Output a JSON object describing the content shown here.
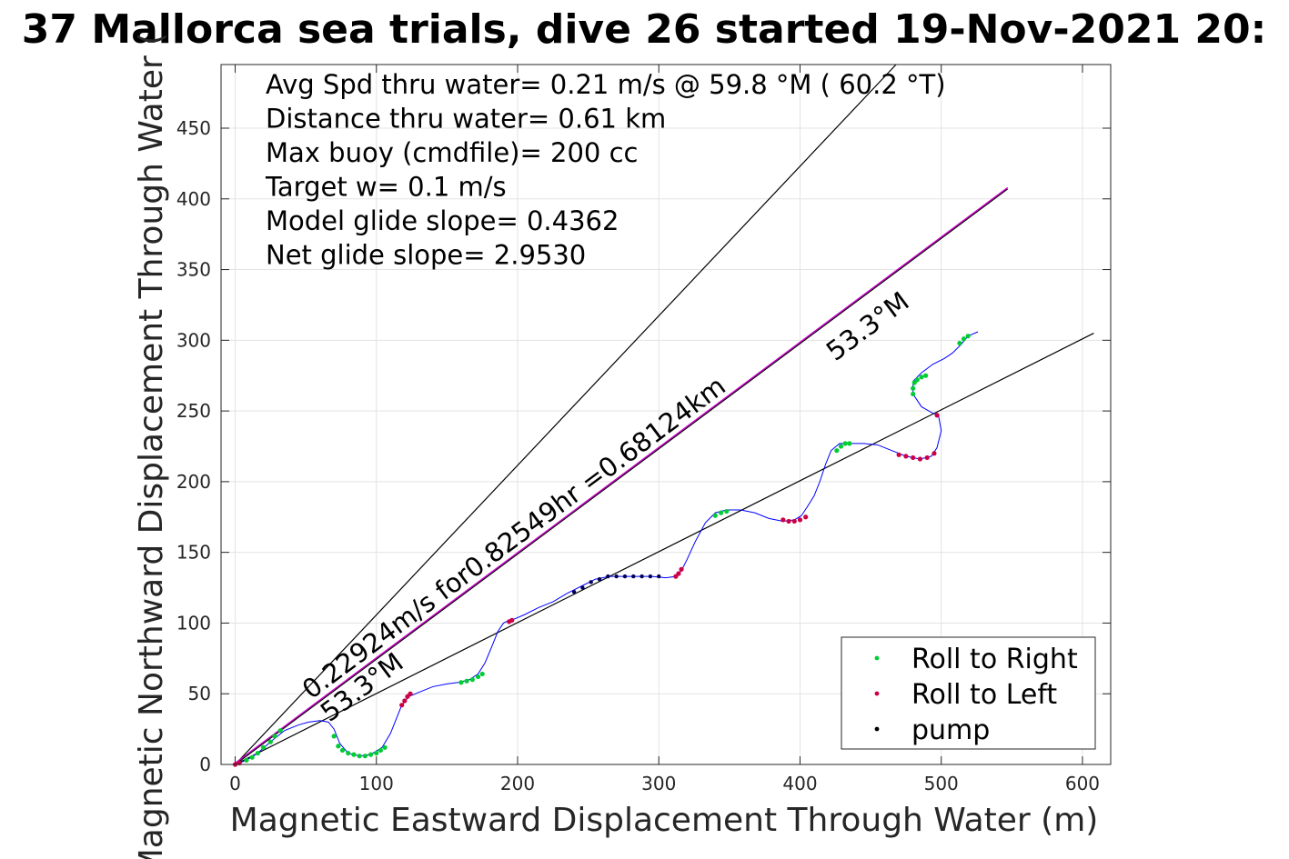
{
  "chart_data": {
    "type": "scatter",
    "title": "37 Mallorca sea trials, dive 26 started 19-Nov-2021 20:",
    "xlabel": "Magnetic Eastward Displacement Through Water (m)",
    "ylabel": "Magnetic Northward Displacement Through Water (",
    "xlim": [
      -10,
      620
    ],
    "ylim": [
      0,
      495
    ],
    "xticks": [
      "0",
      "100",
      "200",
      "300",
      "400",
      "500",
      "600"
    ],
    "yticks": [
      "0",
      "50",
      "100",
      "150",
      "200",
      "250",
      "300",
      "350",
      "400",
      "450"
    ],
    "grid": true,
    "legend_position": "bottom-right",
    "colors": {
      "track": "#0000ff",
      "roll_right": "#00cc33",
      "roll_left": "#cc0044",
      "pump": "#000055",
      "magenta_line": "#cc00cc",
      "reference_lines": "#000000"
    },
    "stats": [
      "Avg Spd thru water=  0.21 m/s @  59.8 °M ( 60.2 °T)",
      "Distance thru water=  0.61 km",
      "Max buoy (cmdfile)= 200 cc",
      "Target w= 0.1 m/s",
      "Model glide slope= 0.4362",
      "Net glide slope= 2.9530"
    ],
    "annotations": {
      "diagonal": "0.22924m/s for0.82549hr =0.68124km",
      "heading_upper": "53.3°M",
      "heading_lower": "53.3°M"
    },
    "reference_lines": [
      {
        "x": [
          0,
          468
        ],
        "y": [
          0,
          495
        ]
      },
      {
        "x": [
          0,
          547
        ],
        "y": [
          0,
          407
        ]
      },
      {
        "x": [
          0,
          608
        ],
        "y": [
          0,
          305
        ]
      }
    ],
    "track": {
      "x": [
        0,
        8,
        16,
        25,
        35,
        45,
        52,
        60,
        66,
        70,
        74,
        80,
        88,
        96,
        104,
        110,
        114,
        118,
        123,
        130,
        140,
        150,
        158,
        166,
        172,
        177,
        182,
        186,
        190,
        194,
        198,
        205,
        215,
        225,
        235,
        245,
        255,
        265,
        275,
        285,
        295,
        305,
        312,
        316,
        320,
        326,
        333,
        340,
        348,
        358,
        368,
        378,
        388,
        396,
        401,
        405,
        410,
        414,
        418,
        422,
        428,
        435,
        445,
        455,
        465,
        475,
        485,
        493,
        497,
        500,
        498,
        493,
        486,
        480,
        480,
        486,
        494,
        502,
        508,
        514,
        519,
        526
      ],
      "y": [
        0,
        3,
        8,
        16,
        24,
        28,
        30,
        31,
        30,
        25,
        15,
        8,
        6,
        7,
        12,
        22,
        32,
        42,
        48,
        51,
        55,
        57,
        58,
        60,
        64,
        72,
        84,
        94,
        100,
        102,
        103,
        106,
        111,
        115,
        121,
        126,
        131,
        133,
        133,
        133,
        133,
        132,
        133,
        137,
        145,
        158,
        171,
        178,
        180,
        180,
        178,
        174,
        172,
        173,
        176,
        182,
        190,
        200,
        212,
        222,
        227,
        227,
        227,
        226,
        222,
        218,
        216,
        218,
        224,
        236,
        247,
        249,
        253,
        262,
        271,
        277,
        283,
        287,
        291,
        297,
        303,
        306
      ]
    },
    "roll_right": {
      "x": [
        8,
        12,
        16,
        20,
        25,
        28,
        32,
        70,
        73,
        76,
        80,
        84,
        88,
        92,
        96,
        100,
        103,
        106,
        160,
        164,
        168,
        172,
        175,
        340,
        344,
        348,
        426,
        429,
        432,
        435,
        480,
        480,
        481,
        483,
        486,
        489,
        513,
        516,
        519
      ],
      "y": [
        3,
        5,
        8,
        12,
        16,
        20,
        24,
        20,
        13,
        10,
        8,
        7,
        6,
        6,
        7,
        8,
        10,
        12,
        58,
        59,
        60,
        62,
        64,
        176,
        178,
        179,
        222,
        225,
        227,
        227,
        262,
        266,
        270,
        272,
        274,
        275,
        298,
        301,
        303
      ]
    },
    "roll_left": {
      "x": [
        0,
        3,
        118,
        120,
        122,
        124,
        194,
        196,
        312,
        314,
        316,
        388,
        392,
        396,
        400,
        404,
        470,
        475,
        480,
        485,
        490,
        495,
        497
      ],
      "y": [
        0,
        1,
        42,
        45,
        48,
        50,
        101,
        102,
        133,
        135,
        138,
        173,
        172,
        172,
        173,
        175,
        219,
        218,
        217,
        216,
        217,
        220,
        247
      ]
    },
    "pump": {
      "x": [
        240,
        246,
        252,
        258,
        264,
        270,
        276,
        282,
        288,
        294,
        300
      ],
      "y": [
        122,
        125,
        129,
        131,
        133,
        133,
        133,
        133,
        133,
        133,
        133
      ]
    },
    "legend": [
      {
        "label": "Roll to Right",
        "color": "#00cc33"
      },
      {
        "label": "Roll to Left",
        "color": "#cc0044"
      },
      {
        "label": "pump",
        "color": "#000000"
      }
    ]
  }
}
